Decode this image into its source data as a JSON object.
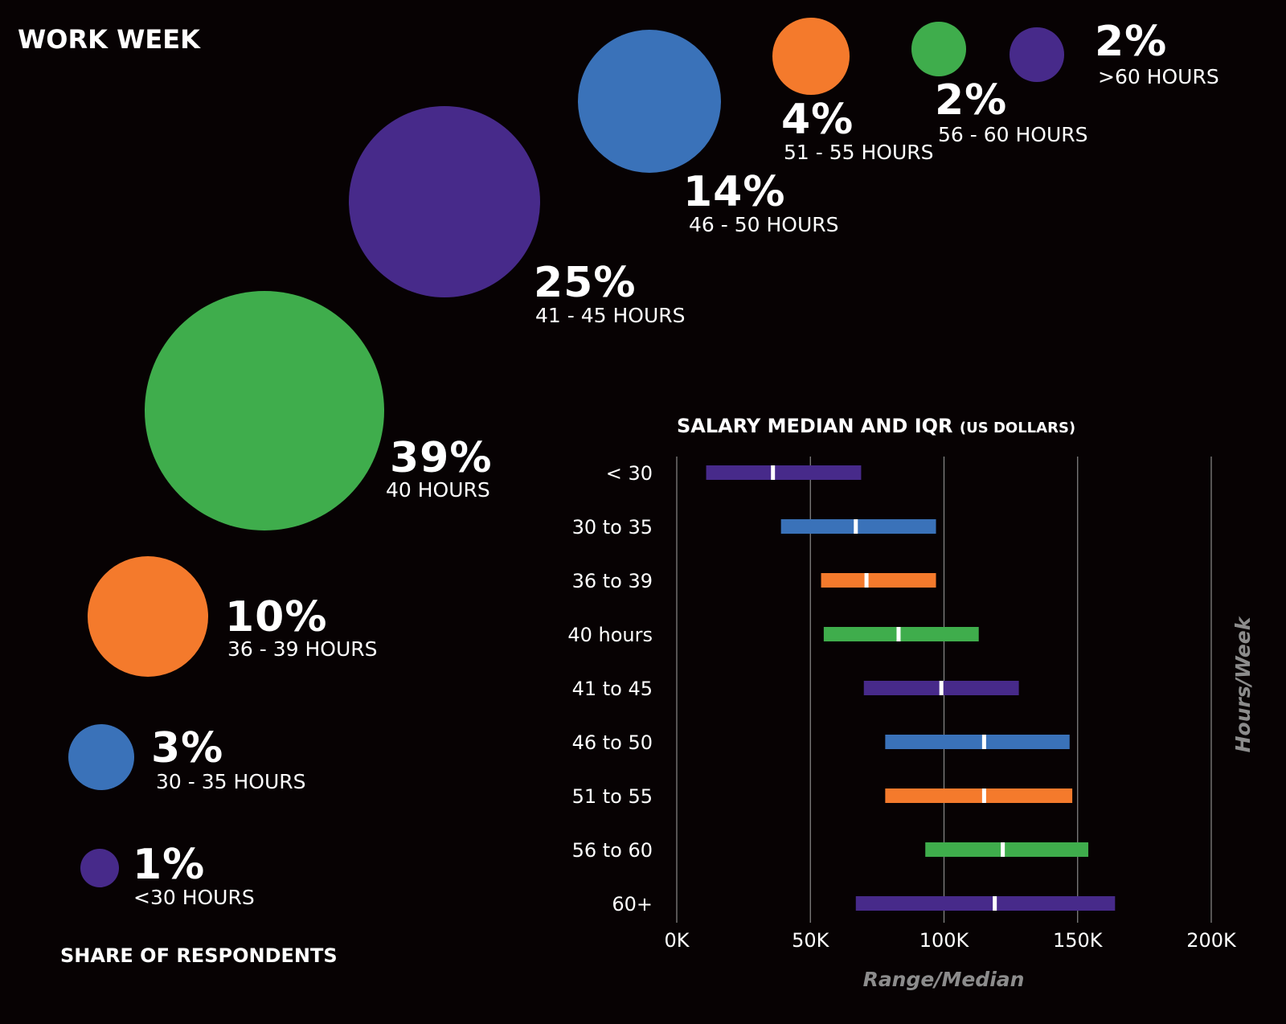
{
  "title": "WORK WEEK",
  "footer_label": "SHARE OF RESPONDENTS",
  "colors": {
    "purple": "#472a8a",
    "blue": "#3a72b9",
    "orange": "#f47a2c",
    "green": "#3fad4c",
    "median": "#ffffff",
    "grid": "#8a8a8a",
    "axis_title": "#8c8c8c",
    "background": "#070203"
  },
  "chart_data": [
    {
      "type": "bubble",
      "title": "WORK WEEK",
      "footer": "SHARE OF RESPONDENTS",
      "items": [
        {
          "id": "lt30",
          "value": 1,
          "percent_label": "1%",
          "hours_label": "<30 HOURS",
          "color": "purple"
        },
        {
          "id": "30-35",
          "value": 3,
          "percent_label": "3%",
          "hours_label": "30 - 35 HOURS",
          "color": "blue"
        },
        {
          "id": "36-39",
          "value": 10,
          "percent_label": "10%",
          "hours_label": "36 - 39 HOURS",
          "color": "orange"
        },
        {
          "id": "40",
          "value": 39,
          "percent_label": "39%",
          "hours_label": "40 HOURS",
          "color": "green"
        },
        {
          "id": "41-45",
          "value": 25,
          "percent_label": "25%",
          "hours_label": "41 - 45 HOURS",
          "color": "purple"
        },
        {
          "id": "46-50",
          "value": 14,
          "percent_label": "14%",
          "hours_label": "46 - 50 HOURS",
          "color": "blue"
        },
        {
          "id": "51-55",
          "value": 4,
          "percent_label": "4%",
          "hours_label": "51 - 55 HOURS",
          "color": "orange"
        },
        {
          "id": "56-60",
          "value": 2,
          "percent_label": "2%",
          "hours_label": "56 - 60 HOURS",
          "color": "green"
        },
        {
          "id": "gt60",
          "value": 2,
          "percent_label": "2%",
          "hours_label": ">60 HOURS",
          "color": "purple"
        }
      ]
    },
    {
      "type": "range",
      "title": "SALARY MEDIAN AND IQR",
      "title_suffix": "(US DOLLARS)",
      "xlabel": "Range/Median",
      "ylabel": "Hours/Week",
      "xlim": [
        0,
        200000
      ],
      "xticks": [
        0,
        50000,
        100000,
        150000,
        200000
      ],
      "xtick_labels": [
        "0K",
        "50K",
        "100K",
        "150K",
        "200K"
      ],
      "categories": [
        "< 30",
        "30 to 35",
        "36 to 39",
        "40 hours",
        "41 to 45",
        "46 to 50",
        "51 to 55",
        "56 to 60",
        "60+"
      ],
      "series": [
        {
          "category": "< 30",
          "low": 11000,
          "high": 69000,
          "median": 36000,
          "color": "purple"
        },
        {
          "category": "30 to 35",
          "low": 39000,
          "high": 97000,
          "median": 67000,
          "color": "blue"
        },
        {
          "category": "36 to 39",
          "low": 54000,
          "high": 97000,
          "median": 71000,
          "color": "orange"
        },
        {
          "category": "40 hours",
          "low": 55000,
          "high": 113000,
          "median": 83000,
          "color": "green"
        },
        {
          "category": "41 to 45",
          "low": 70000,
          "high": 128000,
          "median": 99000,
          "color": "purple"
        },
        {
          "category": "46 to 50",
          "low": 78000,
          "high": 147000,
          "median": 115000,
          "color": "blue"
        },
        {
          "category": "51 to 55",
          "low": 78000,
          "high": 148000,
          "median": 115000,
          "color": "orange"
        },
        {
          "category": "56 to 60",
          "low": 93000,
          "high": 154000,
          "median": 122000,
          "color": "green"
        },
        {
          "category": "60+",
          "low": 67000,
          "high": 164000,
          "median": 119000,
          "color": "purple"
        }
      ]
    }
  ]
}
